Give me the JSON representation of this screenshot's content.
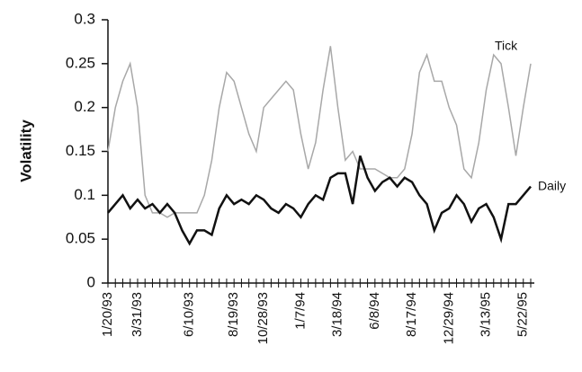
{
  "chart_data": {
    "type": "line",
    "ylabel": "Volatility",
    "categories": [
      "1/20/93",
      null,
      null,
      null,
      "3/31/93",
      null,
      null,
      null,
      null,
      null,
      null,
      "6/10/93",
      null,
      null,
      null,
      null,
      null,
      "8/19/93",
      null,
      null,
      null,
      "10/28/93",
      null,
      null,
      null,
      null,
      "1/7/94",
      null,
      null,
      null,
      null,
      "3/18/94",
      null,
      null,
      null,
      null,
      "6/8/94",
      null,
      null,
      null,
      null,
      "8/17/94",
      null,
      null,
      null,
      null,
      "12/29/94",
      null,
      null,
      null,
      null,
      "3/13/95",
      null,
      null,
      null,
      null,
      "5/22/95",
      null
    ],
    "series": [
      {
        "name": "Tick",
        "color": "#a8a8a8",
        "values": [
          0.15,
          0.2,
          0.23,
          0.25,
          0.2,
          0.1,
          0.08,
          0.08,
          0.075,
          0.08,
          0.08,
          0.08,
          0.08,
          0.1,
          0.14,
          0.2,
          0.24,
          0.23,
          0.2,
          0.17,
          0.15,
          0.2,
          0.21,
          0.22,
          0.23,
          0.22,
          0.17,
          0.13,
          0.16,
          0.22,
          0.27,
          0.2,
          0.14,
          0.15,
          0.13,
          0.13,
          0.13,
          0.125,
          0.12,
          0.12,
          0.13,
          0.17,
          0.24,
          0.26,
          0.23,
          0.23,
          0.2,
          0.18,
          0.13,
          0.12,
          0.16,
          0.22,
          0.26,
          0.25,
          0.2,
          0.145,
          0.2,
          0.25
        ]
      },
      {
        "name": "Daily",
        "color": "#111111",
        "values": [
          0.08,
          0.09,
          0.1,
          0.085,
          0.095,
          0.085,
          0.09,
          0.08,
          0.09,
          0.08,
          0.06,
          0.045,
          0.06,
          0.06,
          0.055,
          0.085,
          0.1,
          0.09,
          0.095,
          0.09,
          0.1,
          0.095,
          0.085,
          0.08,
          0.09,
          0.085,
          0.075,
          0.09,
          0.1,
          0.095,
          0.12,
          0.125,
          0.125,
          0.09,
          0.145,
          0.12,
          0.105,
          0.115,
          0.12,
          0.11,
          0.12,
          0.115,
          0.1,
          0.09,
          0.06,
          0.08,
          0.085,
          0.1,
          0.09,
          0.07,
          0.085,
          0.09,
          0.075,
          0.05,
          0.09,
          0.09,
          0.1,
          0.11
        ]
      }
    ],
    "ylim": [
      0,
      0.3
    ],
    "yticks": [
      0,
      0.05,
      0.1,
      0.15,
      0.2,
      0.25,
      0.3
    ]
  }
}
